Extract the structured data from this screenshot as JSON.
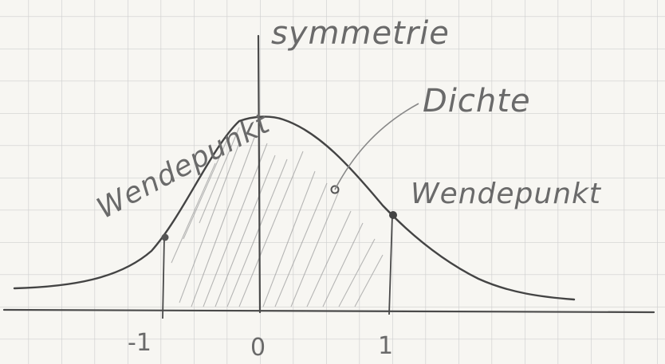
{
  "labels": {
    "symmetrie": "symmetrie",
    "dichte": "Dichte",
    "wendepunkt_left": "Wendepunkt",
    "wendepunkt_right": "Wendepunkt"
  },
  "ticks": [
    "-1",
    "0",
    "1"
  ],
  "colors": {
    "paper": "#f7f6f2",
    "grid": "#cfcfcf",
    "pencil": "#4a4a4a",
    "hatch": "#9a9a9a"
  }
}
